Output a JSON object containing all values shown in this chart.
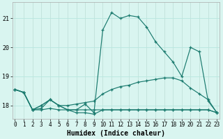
{
  "xlabel": "Humidex (Indice chaleur)",
  "background_color": "#d9f5f0",
  "grid_color": "#b8e8e0",
  "line_color": "#1a7a6e",
  "x_ticks": [
    0,
    1,
    2,
    3,
    4,
    5,
    6,
    7,
    8,
    9,
    10,
    11,
    12,
    13,
    14,
    15,
    16,
    17,
    18,
    19,
    20,
    21,
    22,
    23
  ],
  "y_ticks": [
    18,
    19,
    20,
    21
  ],
  "ylim": [
    17.55,
    21.55
  ],
  "xlim": [
    -0.3,
    23.3
  ],
  "series": [
    [
      18.55,
      18.45,
      17.85,
      18.0,
      18.2,
      18.0,
      17.85,
      17.85,
      18.05,
      17.75,
      20.6,
      21.2,
      21.0,
      21.1,
      21.05,
      20.7,
      20.2,
      19.85,
      19.5,
      19.0,
      20.0,
      19.85,
      18.15,
      17.75
    ],
    [
      18.55,
      18.45,
      17.85,
      18.0,
      18.2,
      18.0,
      18.0,
      18.05,
      18.1,
      18.15,
      18.4,
      18.55,
      18.65,
      18.7,
      18.8,
      18.85,
      18.9,
      18.95,
      18.95,
      18.85,
      18.6,
      18.4,
      18.2,
      17.75
    ],
    [
      18.55,
      18.45,
      17.85,
      17.85,
      17.9,
      17.85,
      17.85,
      17.85,
      17.85,
      17.85,
      17.85,
      17.85,
      17.85,
      17.85,
      17.85,
      17.85,
      17.85,
      17.85,
      17.85,
      17.85,
      17.85,
      17.85,
      17.85,
      17.75
    ],
    [
      18.55,
      18.45,
      17.85,
      17.9,
      18.2,
      18.0,
      17.85,
      17.75,
      17.75,
      17.7,
      17.85,
      17.85,
      17.85,
      17.85,
      17.85,
      17.85,
      17.85,
      17.85,
      17.85,
      17.85,
      17.85,
      17.85,
      17.85,
      17.75
    ]
  ]
}
